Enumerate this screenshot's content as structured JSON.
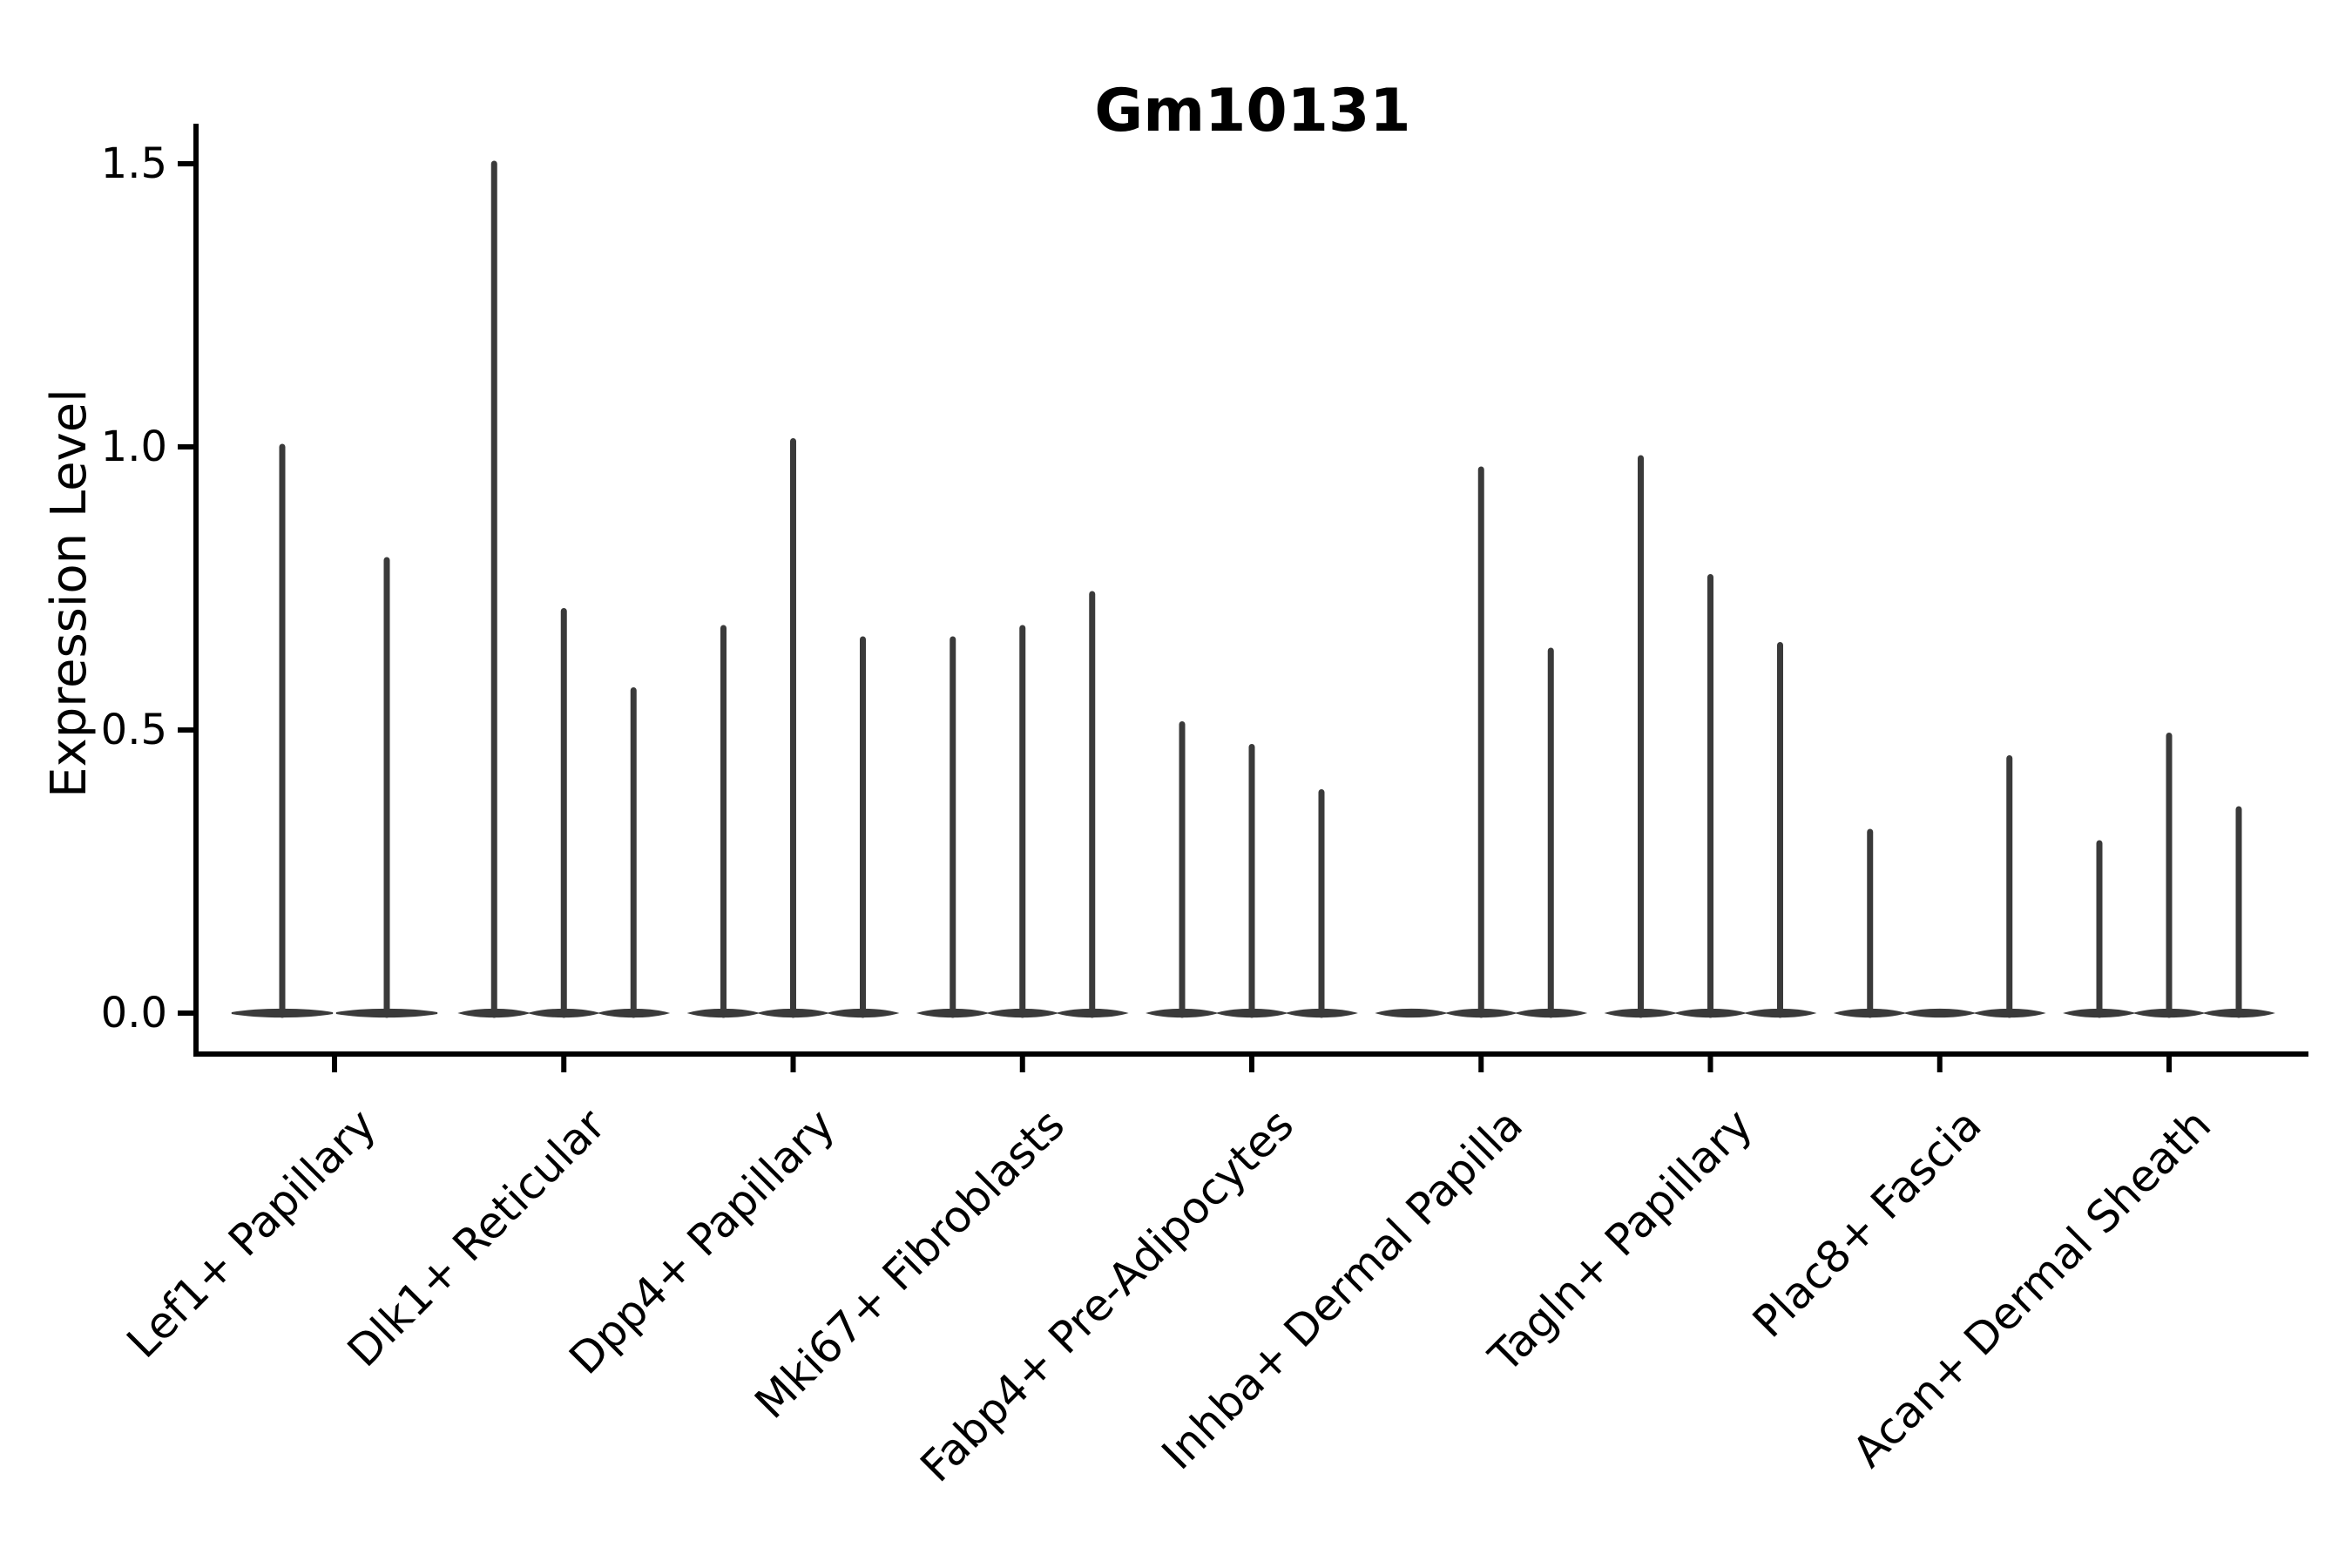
{
  "chart_data": {
    "type": "violin",
    "title": "Gm10131",
    "ylabel": "Expression Level",
    "xlabel": "",
    "yticks": [
      {
        "label": "0.0",
        "value": 0.0
      },
      {
        "label": "0.5",
        "value": 0.5
      },
      {
        "label": "1.0",
        "value": 1.0
      },
      {
        "label": "1.5",
        "value": 1.5
      }
    ],
    "ylim": [
      -0.074,
      1.57
    ],
    "grid": false,
    "legend": null,
    "colors": {
      "violin": "#3a3a3a",
      "axis": "#000000",
      "text": "#000000",
      "background": "#ffffff"
    },
    "groups": [
      {
        "category": "Lef1+ Papillary",
        "violin_maxima": [
          1.0,
          0.8
        ]
      },
      {
        "category": "Dlk1+ Reticular",
        "violin_maxima": [
          1.5,
          0.71,
          0.57
        ]
      },
      {
        "category": "Dpp4+ Papillary",
        "violin_maxima": [
          0.68,
          1.01,
          0.66
        ]
      },
      {
        "category": "Mki67+ Fibroblasts",
        "violin_maxima": [
          0.66,
          0.68,
          0.74
        ]
      },
      {
        "category": "Fabp4+ Pre-Adipocytes",
        "violin_maxima": [
          0.51,
          0.47,
          0.39
        ]
      },
      {
        "category": "Inhba+ Dermal Papilla",
        "violin_maxima": [
          0.0,
          0.96,
          0.64
        ]
      },
      {
        "category": "Tagln+ Papillary",
        "violin_maxima": [
          0.98,
          0.77,
          0.65
        ]
      },
      {
        "category": "Plac8+ Fascia",
        "violin_maxima": [
          0.32,
          0.0,
          0.45
        ]
      },
      {
        "category": "Acan+ Dermal Sheath",
        "violin_maxima": [
          0.3,
          0.49,
          0.36
        ]
      }
    ]
  }
}
